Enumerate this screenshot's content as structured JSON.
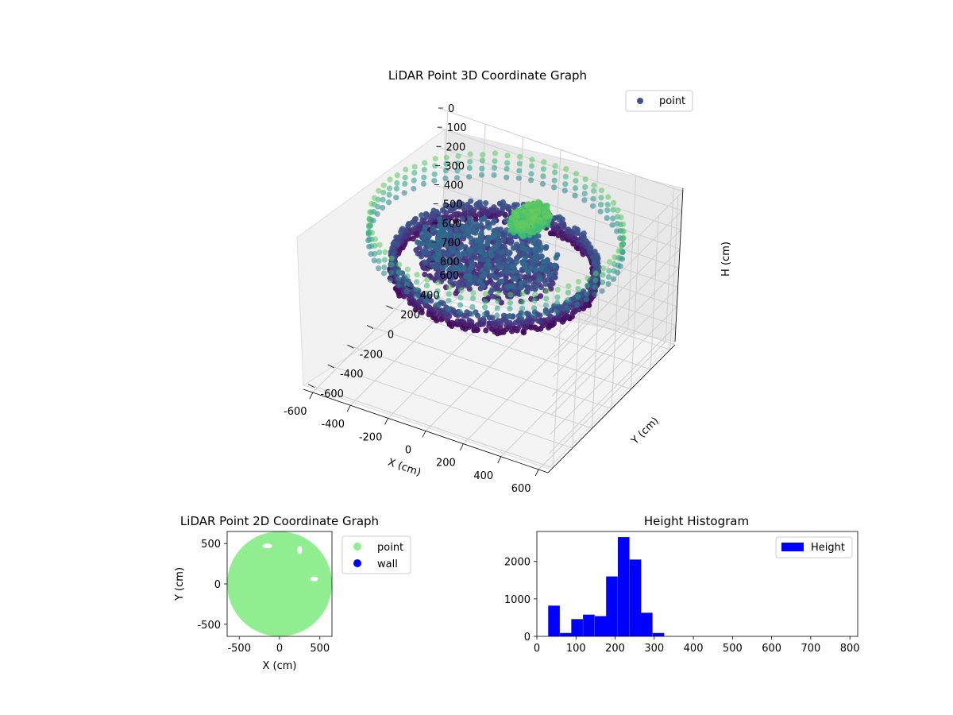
{
  "chart_data": [
    {
      "type": "scatter",
      "projection": "3d",
      "title": "LiDAR Point 3D Coordinate Graph",
      "xlabel": "X (cm)",
      "ylabel": "Y (cm)",
      "zlabel": "H (cm)",
      "xlim": [
        -650,
        650
      ],
      "ylim": [
        -650,
        650
      ],
      "zlim": [
        0,
        800
      ],
      "z_inverted": true,
      "xticks": [
        "-600",
        "-400",
        "-200",
        "0",
        "200",
        "400",
        "600"
      ],
      "yticks": [
        "-600",
        "-400",
        "-200",
        "0",
        "200",
        "400",
        "600"
      ],
      "zticks": [
        "0",
        "100",
        "200",
        "300",
        "400",
        "500",
        "600",
        "700",
        "800"
      ],
      "grid": true,
      "colormap": "viridis",
      "legend": {
        "position": "upper-right",
        "entries": [
          {
            "label": "point",
            "color": "#3b528b"
          }
        ]
      },
      "structures": [
        {
          "name": "outer ring",
          "radius": 600,
          "height_min": 50,
          "height_max": 200
        },
        {
          "name": "lower ring",
          "radius": 480,
          "height_min": 230,
          "height_max": 330
        },
        {
          "name": "inner floor",
          "radius": 350,
          "height_min": 200,
          "height_max": 300
        },
        {
          "name": "top cluster",
          "x_center": 100,
          "y_center": 150,
          "height": 50
        }
      ]
    },
    {
      "type": "scatter",
      "title": "LiDAR Point 2D Coordinate Graph",
      "xlabel": "X (cm)",
      "ylabel": "Y (cm)",
      "xlim": [
        -650,
        650
      ],
      "ylim": [
        -650,
        650
      ],
      "xticks": [
        "-500",
        "0",
        "500"
      ],
      "yticks": [
        "-500",
        "0",
        "500"
      ],
      "filled_region": {
        "shape": "disc",
        "radius": 650,
        "color": "#90ee90"
      },
      "legend": {
        "position": "outside-right",
        "entries": [
          {
            "label": "point",
            "color": "#90ee90"
          },
          {
            "label": "wall",
            "color": "#0000ff"
          }
        ]
      }
    },
    {
      "type": "histogram",
      "title": "Height Histogram",
      "xlabel": "",
      "ylabel": "",
      "xlim": [
        0,
        820
      ],
      "ylim": [
        0,
        2800
      ],
      "bin_width": 29.6,
      "bins": [
        {
          "x0": 29,
          "count": 820
        },
        {
          "x0": 59,
          "count": 90
        },
        {
          "x0": 88,
          "count": 460
        },
        {
          "x0": 118,
          "count": 580
        },
        {
          "x0": 148,
          "count": 540
        },
        {
          "x0": 177,
          "count": 1600
        },
        {
          "x0": 207,
          "count": 2650
        },
        {
          "x0": 237,
          "count": 2050
        },
        {
          "x0": 266,
          "count": 630
        },
        {
          "x0": 296,
          "count": 90
        }
      ],
      "xticks": [
        "0",
        "100",
        "200",
        "300",
        "400",
        "500",
        "600",
        "700",
        "800"
      ],
      "yticks": [
        "0",
        "1000",
        "2000"
      ],
      "bar_color": "#0000ff",
      "legend": {
        "position": "upper-right",
        "entries": [
          {
            "label": "Height",
            "color": "#0000ff"
          }
        ]
      }
    }
  ]
}
